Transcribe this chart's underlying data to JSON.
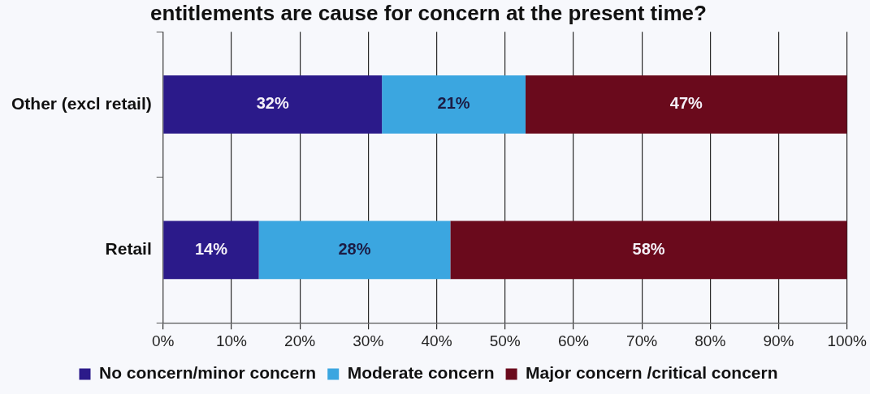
{
  "chart_data": {
    "type": "bar",
    "orientation": "horizontal",
    "stacked": true,
    "title": "entitlements are cause for concern at the present time?",
    "categories": [
      "Other (excl retail)",
      "Retail"
    ],
    "series": [
      {
        "name": "No concern/minor concern",
        "color": "#2b1a8a",
        "values": [
          32,
          14
        ],
        "value_labels": [
          "32%",
          "14%"
        ]
      },
      {
        "name": "Moderate concern",
        "color": "#3ba6e0",
        "values": [
          21,
          28
        ],
        "value_labels": [
          "21%",
          "28%"
        ]
      },
      {
        "name": "Major concern /critical concern",
        "color": "#6a0a1c",
        "values": [
          47,
          58
        ],
        "value_labels": [
          "47%",
          "58%"
        ]
      }
    ],
    "xlim": [
      0,
      100
    ],
    "xticks": [
      {
        "value": 0,
        "label": "0%"
      },
      {
        "value": 10,
        "label": "10%"
      },
      {
        "value": 20,
        "label": "20%"
      },
      {
        "value": 30,
        "label": "30%"
      },
      {
        "value": 40,
        "label": "40%"
      },
      {
        "value": 50,
        "label": "50%"
      },
      {
        "value": 60,
        "label": "60%"
      },
      {
        "value": 70,
        "label": "70%"
      },
      {
        "value": 80,
        "label": "80%"
      },
      {
        "value": 90,
        "label": "90%"
      },
      {
        "value": 100,
        "label": "100%"
      }
    ],
    "grid": "x",
    "legend": "bottom"
  }
}
